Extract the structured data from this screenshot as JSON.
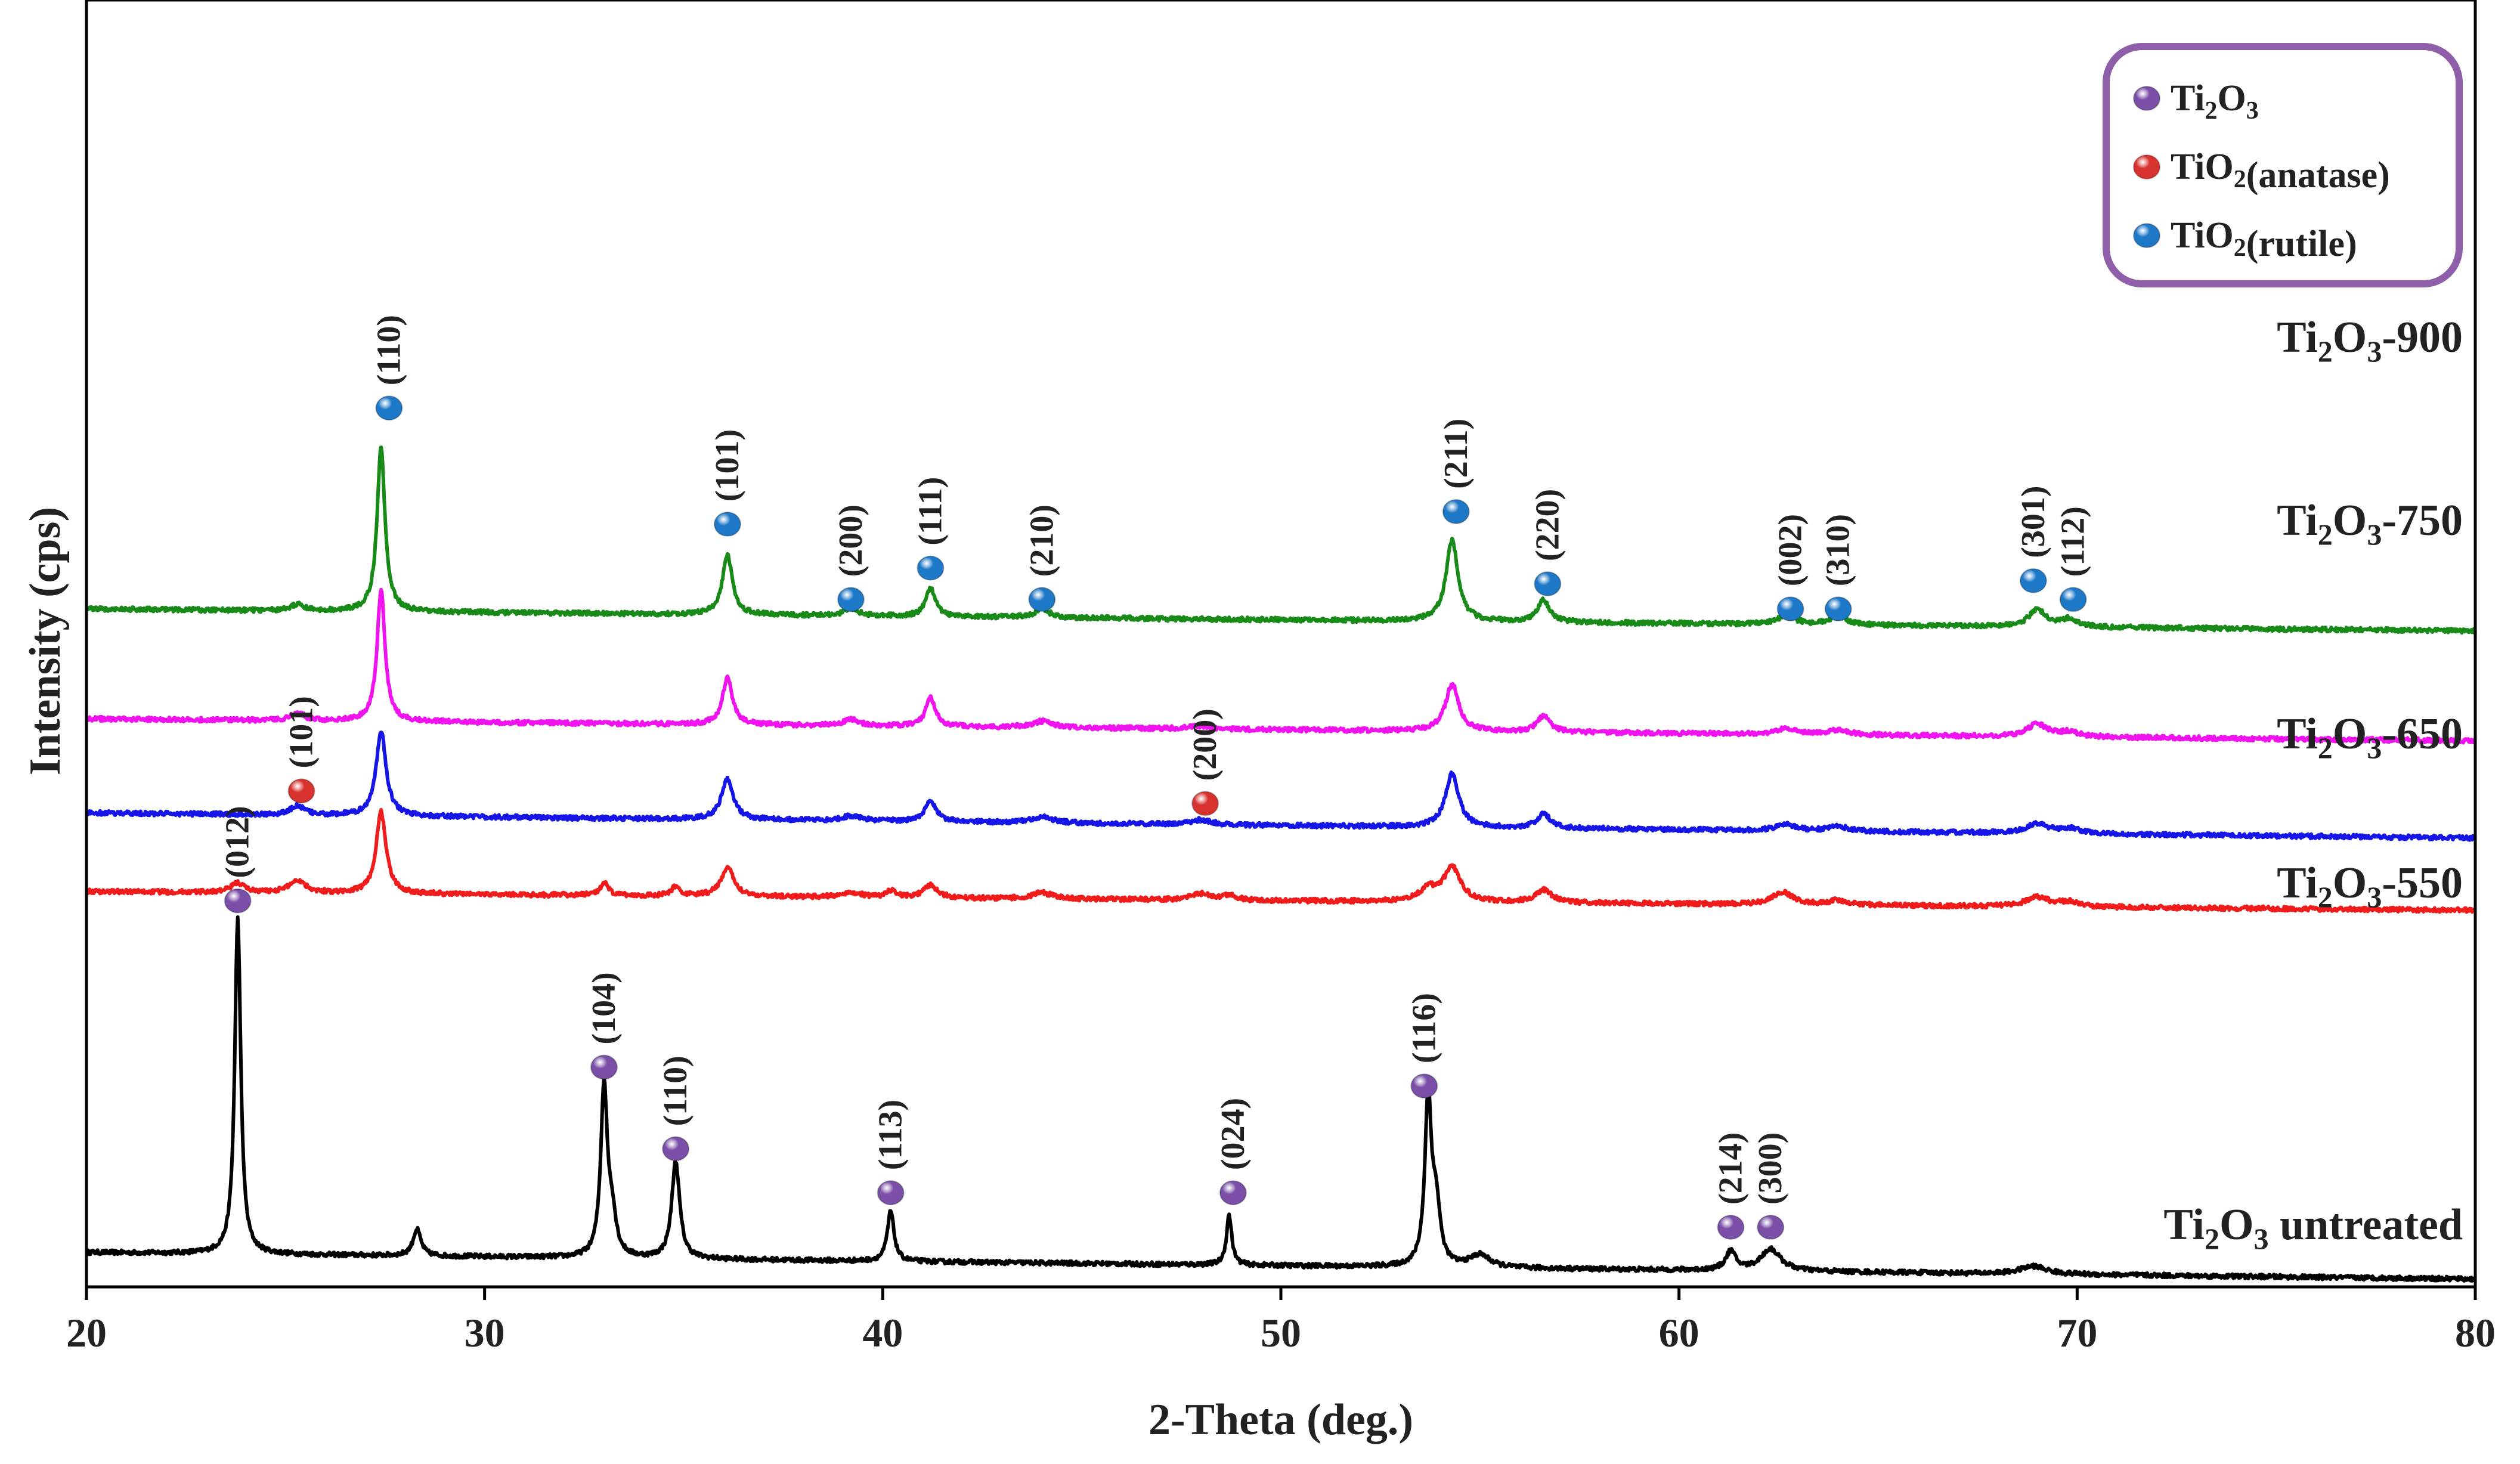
{
  "chart_data": {
    "type": "line",
    "title": "",
    "xlabel": "2-Theta (deg.)",
    "ylabel": "Intensity (cps)",
    "xlim": [
      20,
      80
    ],
    "xticks": [
      20,
      30,
      40,
      50,
      60,
      70,
      80
    ],
    "ylim": [
      0,
      4100
    ],
    "yticks_shown": false,
    "grid": false,
    "legend": {
      "position": "top-right",
      "entries": [
        {
          "key": "ti2o3",
          "base": "Ti",
          "sub1": "2",
          "mid": "O",
          "sub2": "3",
          "tail": "",
          "color": "#7b4fa8"
        },
        {
          "key": "anatase",
          "base": "TiO",
          "sub1": "2",
          "mid": "",
          "sub2": "",
          "tail": "(anatase)",
          "color": "#d8322e"
        },
        {
          "key": "rutile",
          "base": "TiO",
          "sub1": "2",
          "mid": "",
          "sub2": "",
          "tail": "(rutile)",
          "color": "#1e78c8"
        }
      ]
    },
    "series": [
      {
        "name": "Ti2O3 untreated",
        "label": {
          "a": "Ti",
          "s1": "2",
          "b": "O",
          "s2": "3",
          "c": " untreated"
        },
        "color": "#000000",
        "baseline": [
          110,
          25
        ],
        "peaks": [
          [
            23.8,
            1070,
            0.09
          ],
          [
            28.3,
            85,
            0.12
          ],
          [
            33.0,
            540,
            0.1
          ],
          [
            33.2,
            120,
            0.12
          ],
          [
            34.8,
            310,
            0.12
          ],
          [
            40.2,
            160,
            0.1
          ],
          [
            48.7,
            160,
            0.08
          ],
          [
            53.7,
            530,
            0.1
          ],
          [
            53.9,
            180,
            0.12
          ],
          [
            55.0,
            40,
            0.3
          ],
          [
            61.3,
            60,
            0.15
          ],
          [
            62.3,
            70,
            0.3
          ],
          [
            68.9,
            25,
            0.4
          ]
        ]
      },
      {
        "name": "Ti2O3-550",
        "label": {
          "a": "Ti",
          "s1": "2",
          "b": "O",
          "s2": "3",
          "c": "-550"
        },
        "color": "#f01c1c",
        "baseline": [
          1260,
          1200
        ],
        "peaks": [
          [
            23.8,
            30,
            0.2
          ],
          [
            25.3,
            40,
            0.25
          ],
          [
            27.4,
            260,
            0.15
          ],
          [
            33.0,
            40,
            0.12
          ],
          [
            34.8,
            30,
            0.12
          ],
          [
            36.1,
            90,
            0.2
          ],
          [
            39.2,
            15,
            0.3
          ],
          [
            40.2,
            20,
            0.15
          ],
          [
            41.2,
            40,
            0.2
          ],
          [
            44.0,
            20,
            0.3
          ],
          [
            48.0,
            20,
            0.3
          ],
          [
            48.7,
            15,
            0.2
          ],
          [
            53.7,
            40,
            0.25
          ],
          [
            54.3,
            110,
            0.25
          ],
          [
            56.6,
            40,
            0.25
          ],
          [
            62.6,
            40,
            0.3
          ],
          [
            64.0,
            15,
            0.3
          ],
          [
            69.0,
            30,
            0.35
          ],
          [
            69.8,
            15,
            0.3
          ]
        ]
      },
      {
        "name": "Ti2O3-650",
        "label": {
          "a": "Ti",
          "s1": "2",
          "b": "O",
          "s2": "3",
          "c": "-650"
        },
        "color": "#1515e8",
        "baseline": [
          1510,
          1430
        ],
        "peaks": [
          [
            25.3,
            30,
            0.2
          ],
          [
            27.4,
            270,
            0.15
          ],
          [
            36.1,
            130,
            0.18
          ],
          [
            39.2,
            15,
            0.3
          ],
          [
            41.2,
            65,
            0.18
          ],
          [
            44.0,
            20,
            0.3
          ],
          [
            48.0,
            15,
            0.3
          ],
          [
            54.3,
            170,
            0.2
          ],
          [
            56.6,
            45,
            0.2
          ],
          [
            62.7,
            20,
            0.3
          ],
          [
            64.0,
            15,
            0.3
          ],
          [
            69.0,
            30,
            0.35
          ],
          [
            69.8,
            15,
            0.3
          ]
        ]
      },
      {
        "name": "Ti2O3-750",
        "label": {
          "a": "Ti",
          "s1": "2",
          "b": "O",
          "s2": "3",
          "c": "-750"
        },
        "color": "#f013f0",
        "baseline": [
          1810,
          1740
        ],
        "peaks": [
          [
            25.3,
            25,
            0.2
          ],
          [
            27.4,
            420,
            0.12
          ],
          [
            36.1,
            150,
            0.15
          ],
          [
            39.2,
            20,
            0.25
          ],
          [
            41.2,
            90,
            0.15
          ],
          [
            44.0,
            20,
            0.3
          ],
          [
            48.0,
            10,
            0.3
          ],
          [
            54.3,
            150,
            0.2
          ],
          [
            56.6,
            50,
            0.2
          ],
          [
            62.7,
            20,
            0.3
          ],
          [
            64.0,
            15,
            0.3
          ],
          [
            69.0,
            40,
            0.3
          ],
          [
            69.8,
            15,
            0.3
          ]
        ]
      },
      {
        "name": "Ti2O3-900",
        "label": {
          "a": "Ti",
          "s1": "2",
          "b": "O",
          "s2": "3",
          "c": "-900"
        },
        "color": "#188a18",
        "baseline": [
          2160,
          2090
        ],
        "peaks": [
          [
            25.3,
            20,
            0.2
          ],
          [
            27.4,
            520,
            0.12
          ],
          [
            36.1,
            190,
            0.15
          ],
          [
            39.2,
            25,
            0.2
          ],
          [
            41.2,
            90,
            0.15
          ],
          [
            44.0,
            30,
            0.2
          ],
          [
            54.3,
            260,
            0.18
          ],
          [
            56.6,
            70,
            0.18
          ],
          [
            62.7,
            30,
            0.25
          ],
          [
            64.0,
            30,
            0.25
          ],
          [
            69.0,
            55,
            0.25
          ],
          [
            69.8,
            25,
            0.25
          ]
        ]
      }
    ],
    "annotations": [
      {
        "phase": "rutile",
        "x": 27.6,
        "y": 2800,
        "hkl": "(110)"
      },
      {
        "phase": "rutile",
        "x": 36.1,
        "y": 2430,
        "hkl": "(101)"
      },
      {
        "phase": "rutile",
        "x": 39.2,
        "y": 2190,
        "hkl": "(200)"
      },
      {
        "phase": "rutile",
        "x": 41.2,
        "y": 2290,
        "hkl": "(111)"
      },
      {
        "phase": "rutile",
        "x": 44.0,
        "y": 2190,
        "hkl": "(210)"
      },
      {
        "phase": "rutile",
        "x": 54.4,
        "y": 2470,
        "hkl": "(211)"
      },
      {
        "phase": "rutile",
        "x": 56.7,
        "y": 2240,
        "hkl": "(220)"
      },
      {
        "phase": "rutile",
        "x": 62.8,
        "y": 2160,
        "hkl": "(002)"
      },
      {
        "phase": "rutile",
        "x": 64.0,
        "y": 2160,
        "hkl": "(310)"
      },
      {
        "phase": "rutile",
        "x": 68.9,
        "y": 2250,
        "hkl": "(301)"
      },
      {
        "phase": "rutile",
        "x": 69.9,
        "y": 2190,
        "hkl": "(112)"
      },
      {
        "phase": "anatase",
        "x": 25.4,
        "y": 1580,
        "hkl": "(101)"
      },
      {
        "phase": "anatase",
        "x": 48.1,
        "y": 1540,
        "hkl": "(200)"
      },
      {
        "phase": "ti2o3",
        "x": 23.8,
        "y": 1230,
        "hkl": "(012)"
      },
      {
        "phase": "ti2o3",
        "x": 33.0,
        "y": 700,
        "hkl": "(104)"
      },
      {
        "phase": "ti2o3",
        "x": 34.8,
        "y": 440,
        "hkl": "(110)"
      },
      {
        "phase": "ti2o3",
        "x": 40.2,
        "y": 300,
        "hkl": "(113)"
      },
      {
        "phase": "ti2o3",
        "x": 48.8,
        "y": 300,
        "hkl": "(024)"
      },
      {
        "phase": "ti2o3",
        "x": 53.6,
        "y": 640,
        "hkl": "(116)"
      },
      {
        "phase": "ti2o3",
        "x": 61.3,
        "y": 190,
        "hkl": "(214)"
      },
      {
        "phase": "ti2o3",
        "x": 62.3,
        "y": 190,
        "hkl": "(300)"
      }
    ]
  }
}
